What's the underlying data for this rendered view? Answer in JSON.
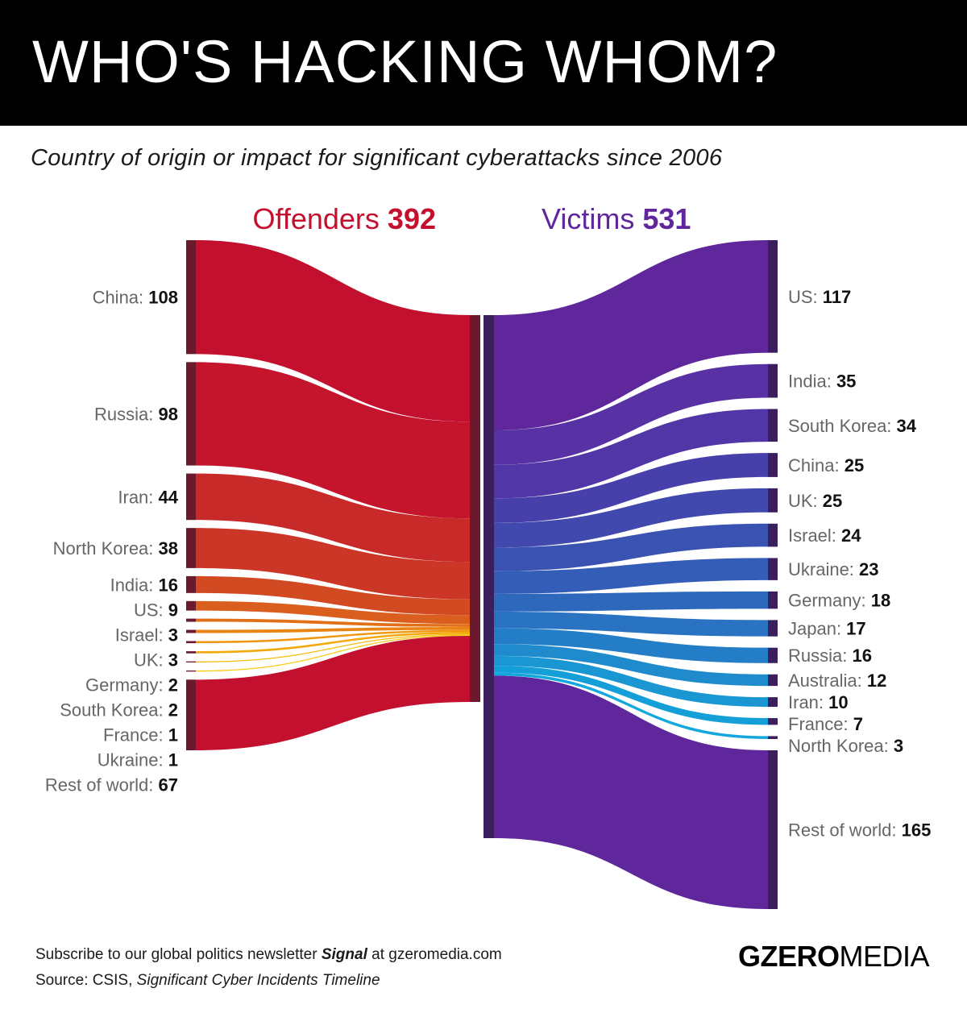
{
  "header": {
    "title": "WHO'S HACKING WHOM?",
    "subtitle": "Country of origin or impact for significant cyberattacks since 2006"
  },
  "footer": {
    "line1_pre": "Subscribe to our global politics newsletter ",
    "line1_em": "Signal",
    "line1_post": " at gzeromedia.com",
    "source_pre": "Source: CSIS, ",
    "source_em": "Significant Cyber Incidents Timeline",
    "logo_bold": "GZERO",
    "logo_light": "MEDIA"
  },
  "colors": {
    "offender_main": "#c3102e",
    "offender_bar": "#6a1a2c",
    "victim_main": "#5f279b",
    "victim_bar": "#3b1f5c",
    "offender_header": "#c3102e",
    "victim_header": "#5f279b"
  },
  "chart_data": {
    "type": "sankey",
    "offenders_label": "Offenders",
    "offenders_total": "392",
    "victims_label": "Victims",
    "victims_total": "531",
    "offenders": [
      {
        "name": "China",
        "value": 108
      },
      {
        "name": "Russia",
        "value": 98
      },
      {
        "name": "Iran",
        "value": 44
      },
      {
        "name": "North Korea",
        "value": 38
      },
      {
        "name": "India",
        "value": 16
      },
      {
        "name": "US",
        "value": 9
      },
      {
        "name": "Israel",
        "value": 3
      },
      {
        "name": "UK",
        "value": 3
      },
      {
        "name": "Germany",
        "value": 2
      },
      {
        "name": "South Korea",
        "value": 2
      },
      {
        "name": "France",
        "value": 1
      },
      {
        "name": "Ukraine",
        "value": 1
      },
      {
        "name": "Rest of world",
        "value": 67
      }
    ],
    "victims": [
      {
        "name": "US",
        "value": 117
      },
      {
        "name": "India",
        "value": 35
      },
      {
        "name": "South Korea",
        "value": 34
      },
      {
        "name": "China",
        "value": 25
      },
      {
        "name": "UK",
        "value": 25
      },
      {
        "name": "Israel",
        "value": 24
      },
      {
        "name": "Ukraine",
        "value": 23
      },
      {
        "name": "Germany",
        "value": 18
      },
      {
        "name": "Japan",
        "value": 17
      },
      {
        "name": "Russia",
        "value": 16
      },
      {
        "name": "Australia",
        "value": 12
      },
      {
        "name": "Iran",
        "value": 10
      },
      {
        "name": "France",
        "value": 7
      },
      {
        "name": "North Korea",
        "value": 3
      },
      {
        "name": "Rest of world",
        "value": 165
      }
    ]
  }
}
